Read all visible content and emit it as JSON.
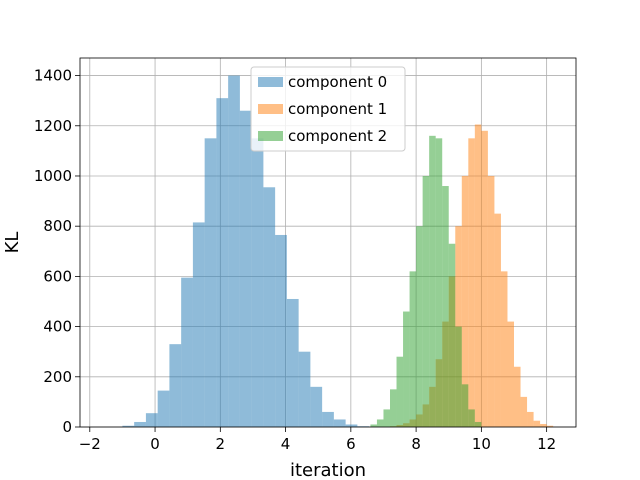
{
  "chart_data": {
    "type": "histogram",
    "xlabel": "iteration",
    "ylabel": "KL",
    "xlim": [
      -2.3,
      12.9
    ],
    "ylim": [
      0,
      1470
    ],
    "grid": true,
    "legend_position": "top-center",
    "x_ticks": [
      -2,
      0,
      2,
      4,
      6,
      8,
      10,
      12
    ],
    "x_tick_labels": [
      "−2",
      "0",
      "2",
      "4",
      "6",
      "8",
      "10",
      "12"
    ],
    "y_ticks": [
      0,
      200,
      400,
      600,
      800,
      1000,
      1200,
      1400
    ],
    "y_tick_labels": [
      "0",
      "200",
      "400",
      "600",
      "800",
      "1000",
      "1200",
      "1400"
    ],
    "series": [
      {
        "name": "component 0",
        "color": "#1f77b4",
        "bin_edges": [
          -1.0,
          -0.64,
          -0.28,
          0.08,
          0.44,
          0.8,
          1.16,
          1.52,
          1.88,
          2.24,
          2.6,
          2.96,
          3.32,
          3.68,
          4.04,
          4.4,
          4.76,
          5.12,
          5.48,
          5.84,
          6.2,
          6.56
        ],
        "counts": [
          5,
          20,
          55,
          145,
          330,
          595,
          815,
          1150,
          1310,
          1400,
          1260,
          1150,
          955,
          765,
          510,
          300,
          160,
          60,
          30,
          10,
          3
        ]
      },
      {
        "name": "component 1",
        "color": "#ff7f0e",
        "bin_edges": [
          7.2,
          7.4,
          7.6,
          7.8,
          8.0,
          8.2,
          8.4,
          8.6,
          8.8,
          9.0,
          9.2,
          9.4,
          9.6,
          9.8,
          10.0,
          10.2,
          10.4,
          10.6,
          10.8,
          11.0,
          11.2,
          11.4,
          11.6,
          11.8,
          12.0,
          12.2
        ],
        "counts": [
          3,
          8,
          15,
          30,
          50,
          90,
          160,
          270,
          420,
          600,
          800,
          1000,
          1150,
          1205,
          1180,
          1000,
          850,
          620,
          420,
          240,
          120,
          60,
          25,
          12,
          5
        ]
      },
      {
        "name": "component 2",
        "color": "#2ca02c",
        "bin_edges": [
          6.6,
          6.8,
          7.0,
          7.2,
          7.4,
          7.6,
          7.8,
          8.0,
          8.2,
          8.4,
          8.6,
          8.8,
          9.0,
          9.2,
          9.4,
          9.6,
          9.8,
          10.0
        ],
        "counts": [
          10,
          30,
          70,
          150,
          280,
          460,
          620,
          800,
          1000,
          1160,
          1150,
          960,
          730,
          400,
          170,
          70,
          20
        ]
      }
    ]
  }
}
